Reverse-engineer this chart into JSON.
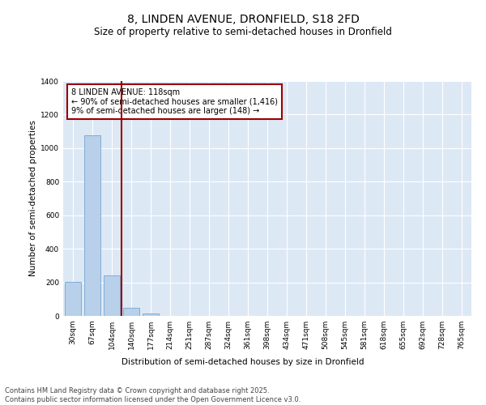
{
  "title_line1": "8, LINDEN AVENUE, DRONFIELD, S18 2FD",
  "title_line2": "Size of property relative to semi-detached houses in Dronfield",
  "xlabel": "Distribution of semi-detached houses by size in Dronfield",
  "ylabel": "Number of semi-detached properties",
  "categories": [
    "30sqm",
    "67sqm",
    "104sqm",
    "140sqm",
    "177sqm",
    "214sqm",
    "251sqm",
    "287sqm",
    "324sqm",
    "361sqm",
    "398sqm",
    "434sqm",
    "471sqm",
    "508sqm",
    "545sqm",
    "581sqm",
    "618sqm",
    "655sqm",
    "692sqm",
    "728sqm",
    "765sqm"
  ],
  "values": [
    205,
    1075,
    240,
    50,
    14,
    0,
    0,
    0,
    0,
    0,
    0,
    0,
    0,
    0,
    0,
    0,
    0,
    0,
    0,
    0,
    0
  ],
  "bar_color": "#b8d0ea",
  "bar_edge_color": "#6699cc",
  "vline_x": 2.5,
  "vline_color": "#990000",
  "annotation_text": "8 LINDEN AVENUE: 118sqm\n← 90% of semi-detached houses are smaller (1,416)\n9% of semi-detached houses are larger (148) →",
  "annotation_box_color": "#990000",
  "background_color": "#dde8f5",
  "ylim": [
    0,
    1400
  ],
  "yticks": [
    0,
    200,
    400,
    600,
    800,
    1000,
    1200,
    1400
  ],
  "footer_line1": "Contains HM Land Registry data © Crown copyright and database right 2025.",
  "footer_line2": "Contains public sector information licensed under the Open Government Licence v3.0.",
  "title_fontsize": 10,
  "subtitle_fontsize": 8.5,
  "axis_label_fontsize": 7.5,
  "tick_fontsize": 6.5,
  "annotation_fontsize": 7,
  "footer_fontsize": 6
}
